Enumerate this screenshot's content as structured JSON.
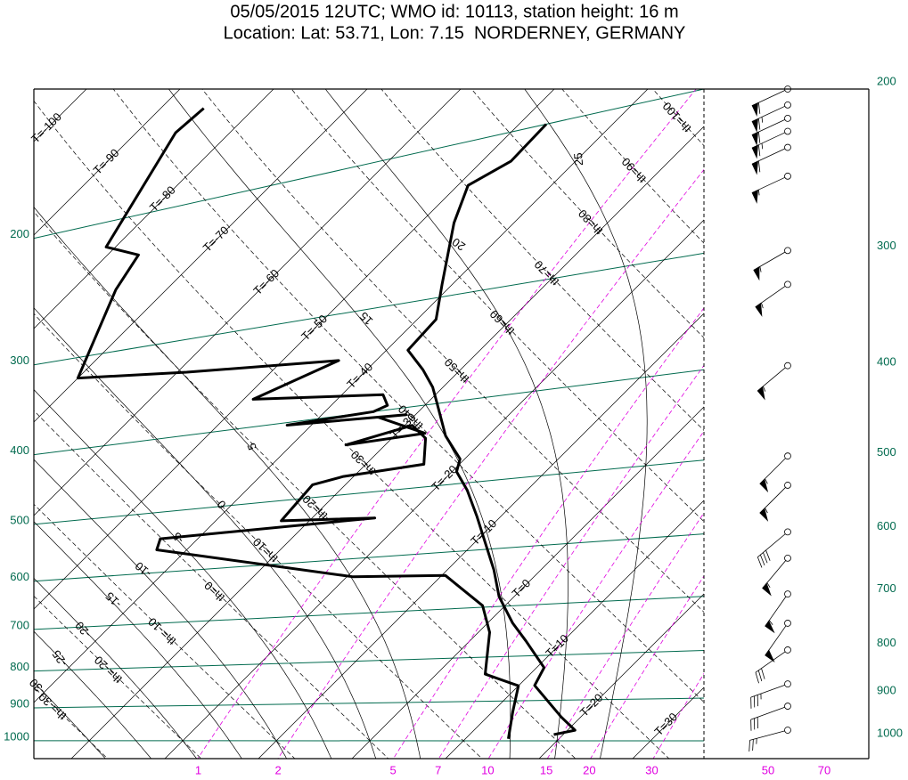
{
  "chart_data": {
    "type": "skewt",
    "title": "05/05/2015 12UTC; WMO id: 10113, station height: 16 m",
    "subtitle": "Location: Lat: 53.71, Lon: 7.15  NORDERNEY, GERMANY",
    "log_scale": true,
    "ylim": [
      1059,
      124
    ],
    "yticks": [
      200,
      300,
      400,
      500,
      600,
      700,
      800,
      900,
      1000
    ],
    "y2lim": [
      1045,
      200
    ],
    "y2ticks": [
      200,
      300,
      400,
      500,
      600,
      700,
      800,
      900,
      1000
    ],
    "isobar_color": "#006a4e",
    "isotherms": [
      {
        "value": -100,
        "label": "T=-100"
      },
      {
        "value": -90,
        "label": "T=-90"
      },
      {
        "value": -80,
        "label": "T=-80"
      },
      {
        "value": -70,
        "label": "T=-70"
      },
      {
        "value": -60,
        "label": "T=-60"
      },
      {
        "value": -50,
        "label": "T=-50"
      },
      {
        "value": -40,
        "label": "T=-40"
      },
      {
        "value": -30,
        "label": "T=-30"
      },
      {
        "value": -20,
        "label": "T=-20"
      },
      {
        "value": -10,
        "label": "T=-10"
      },
      {
        "value": 0,
        "label": "T=0"
      },
      {
        "value": 10,
        "label": "T=10"
      },
      {
        "value": 20,
        "label": "T=20"
      },
      {
        "value": 30,
        "label": "T=30"
      }
    ],
    "dry_adiabats": [
      {
        "value": -30,
        "label": "th=-30"
      },
      {
        "value": -20,
        "label": "th=-20"
      },
      {
        "value": -10,
        "label": "th=-10"
      },
      {
        "value": 0,
        "label": "th=0"
      },
      {
        "value": 10,
        "label": "th=10"
      },
      {
        "value": 20,
        "label": "th=20"
      },
      {
        "value": 30,
        "label": "th=30"
      },
      {
        "value": 40,
        "label": "th=40"
      },
      {
        "value": 50,
        "label": "th=50"
      },
      {
        "value": 60,
        "label": "th=60"
      },
      {
        "value": 70,
        "label": "th=70"
      },
      {
        "value": 80,
        "label": "th=80"
      },
      {
        "value": 90,
        "label": "th=90"
      },
      {
        "value": 100,
        "label": "th=100"
      }
    ],
    "moist_adiabats": [
      25,
      20,
      15,
      5,
      0,
      -5,
      -10,
      -15,
      -20,
      -25,
      -30
    ],
    "mixing_ratios": [
      1,
      2,
      5,
      7,
      10,
      15,
      20,
      30
    ],
    "mixing_color": "#e000e0",
    "wind_speed_ticks": [
      50,
      70
    ],
    "series": [
      {
        "color": "#000000",
        "pressure": [
          984,
          973,
          940,
          865,
          826,
          769,
          733,
          682,
          635,
          590,
          548,
          510,
          484,
          468,
          438,
          399,
          382,
          363,
          342,
          318,
          290,
          247,
          225,
          216,
          200
        ],
        "values": [
          19.0,
          20.8,
          17.9,
          11.7,
          10.8,
          6.0,
          2.7,
          -1.6,
          -5.0,
          -8.8,
          -12.6,
          -16.4,
          -19.5,
          -20.5,
          -24.5,
          -29.0,
          -31.1,
          -34.0,
          -37.7,
          -38.0,
          -41.1,
          -46.4,
          -48.9,
          -46.9,
          -47.1
        ]
      },
      {
        "color": "#000000",
        "pressure": [
          995,
          927,
          865,
          837,
          749,
          697,
          639,
          631,
          560,
          542,
          538,
          530,
          482,
          475,
          470,
          438,
          421,
          435,
          432,
          407,
          408,
          403,
          400,
          395,
          383,
          369,
          342,
          331,
          320,
          248,
          226,
          216,
          160,
          152
        ],
        "values": [
          14.6,
          12.2,
          10.0,
          5.2,
          1.2,
          -2.4,
          -9.6,
          -19.4,
          -43.2,
          -44.0,
          -23.3,
          -33.0,
          -33.5,
          -31.1,
          -23.8,
          -26.4,
          -29.2,
          -34.2,
          -27.0,
          -33.7,
          -31.0,
          -42.6,
          -34.8,
          -34.0,
          -35.6,
          -49.0,
          -44.0,
          -59.0,
          -70.0,
          -75.4,
          -76.7,
          -81.0,
          -85.8,
          -85.4
        ]
      }
    ],
    "winds": {
      "pressure": [
        200,
        208,
        215,
        222,
        231,
        248,
        298,
        324,
        396,
        495,
        532,
        597,
        637,
        696,
        748,
        799,
        869,
        918,
        974
      ],
      "direction": [
        245,
        245,
        245,
        245,
        245,
        245,
        240,
        235,
        230,
        225,
        225,
        230,
        220,
        215,
        215,
        235,
        250,
        250,
        255
      ],
      "speed": [
        60,
        65,
        60,
        65,
        60,
        55,
        55,
        55,
        55,
        55,
        55,
        40,
        55,
        55,
        50,
        30,
        35,
        30,
        25
      ]
    }
  }
}
